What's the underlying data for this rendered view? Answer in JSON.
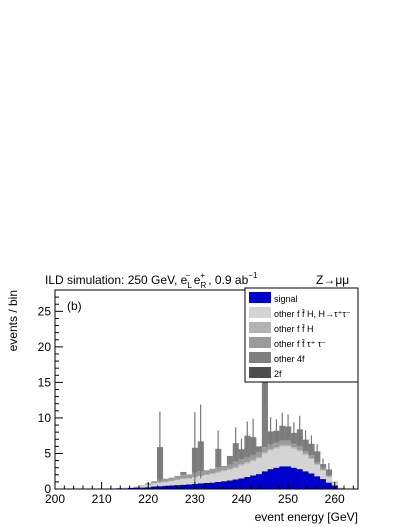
{
  "chart_data": {
    "type": "bar",
    "stacked": true,
    "title_main": "ILD simulation: 250 GeV, e",
    "title_sub1": "L",
    "title_sup1": "−",
    "title_e2": " e",
    "title_sub2": "R",
    "title_sup2": "+",
    "title_lumi": " , 0.9 ab",
    "title_sup3": "−1",
    "channel": "Z→μμ",
    "panel_label": "(b)",
    "xlabel": "event energy [GeV]",
    "ylabel": "events / bin",
    "xlim": [
      200,
      265
    ],
    "ylim": [
      0,
      28
    ],
    "xticks": [
      200,
      210,
      220,
      230,
      240,
      250,
      260
    ],
    "yticks": [
      0,
      5,
      10,
      15,
      20,
      25
    ],
    "bin_width": 1.25,
    "x": [
      212.5,
      213.75,
      215,
      216.25,
      217.5,
      218.75,
      220,
      221.25,
      222.5,
      223.75,
      225,
      226.25,
      227.5,
      228.75,
      230,
      231.25,
      232.5,
      233.75,
      235,
      236.25,
      237.5,
      238.75,
      240,
      241.25,
      242.5,
      243.75,
      245,
      246.25,
      247.5,
      248.75,
      250,
      251.25,
      252.5,
      253.75,
      255,
      256.25,
      257.5,
      258.75,
      260,
      261.25
    ],
    "series": [
      {
        "name": "signal",
        "color": "#0000cc",
        "values": [
          0.05,
          0.1,
          0.1,
          0.15,
          0.2,
          0.2,
          0.25,
          0.35,
          0.4,
          0.45,
          0.5,
          0.55,
          0.6,
          0.65,
          0.7,
          0.8,
          0.85,
          0.9,
          1.0,
          1.1,
          1.2,
          1.35,
          1.5,
          1.7,
          1.9,
          2.1,
          2.5,
          2.8,
          3.0,
          3.2,
          3.2,
          3.0,
          2.8,
          2.5,
          2.2,
          1.8,
          1.4,
          0.9,
          0.5,
          0.1
        ]
      },
      {
        "name": "other f f̄ H, H→τ⁺τ⁻",
        "color": "#d4d4d4",
        "values": [
          0,
          0,
          0.1,
          0.1,
          0.2,
          0.2,
          0.3,
          0.4,
          0.5,
          0.5,
          0.6,
          0.7,
          0.8,
          0.8,
          0.9,
          1.0,
          1.1,
          1.2,
          1.3,
          1.4,
          1.5,
          1.6,
          1.8,
          1.9,
          2.0,
          2.2,
          2.5,
          2.6,
          2.7,
          2.8,
          2.8,
          2.7,
          2.5,
          2.3,
          2.0,
          1.6,
          1.2,
          0.8,
          0.4,
          0.1
        ]
      },
      {
        "name": "other f f̄ H",
        "color": "#b3b3b3",
        "values": [
          0,
          0,
          0,
          0,
          0,
          0,
          0.05,
          0.05,
          0.1,
          0.1,
          0.1,
          0.1,
          0.1,
          0.1,
          0.1,
          0.1,
          0.1,
          0.15,
          0.15,
          0.15,
          0.15,
          0.2,
          0.2,
          0.2,
          0.2,
          0.2,
          0.2,
          0.2,
          0.2,
          0.2,
          0.2,
          0.2,
          0.2,
          0.15,
          0.15,
          0.1,
          0.1,
          0.05,
          0.05,
          0
        ]
      },
      {
        "name": "other f f̄ τ⁺ τ⁻",
        "color": "#9b9b9b",
        "values": [
          0,
          0,
          0,
          0,
          0,
          0.1,
          0.2,
          0.3,
          0.3,
          0.4,
          0.4,
          0.5,
          0.5,
          0.5,
          0.6,
          0.6,
          0.6,
          0.6,
          0.6,
          0.6,
          0.6,
          0.7,
          0.7,
          0.7,
          0.7,
          0.7,
          0.7,
          0.7,
          0.6,
          0.6,
          0.6,
          0.5,
          0.5,
          0.4,
          0.4,
          0.3,
          0.3,
          0.2,
          0.1,
          0
        ]
      },
      {
        "name": "other 4f",
        "color": "#7f7f7f",
        "values": [
          0,
          0,
          0,
          0,
          0,
          0,
          0,
          0,
          4.6,
          0,
          0,
          0,
          0.4,
          0,
          3.5,
          4.2,
          0,
          0,
          2.6,
          0,
          1.2,
          2.6,
          1.4,
          3.0,
          2.5,
          0.8,
          9.6,
          1.8,
          1.7,
          2.1,
          2.0,
          1.5,
          2.4,
          1.6,
          1.6,
          1.5,
          0.5,
          0.8,
          0,
          0
        ]
      },
      {
        "name": "2f",
        "color": "#4d4d4d",
        "values": [
          0,
          0,
          0,
          0,
          0,
          0,
          0,
          0,
          0,
          0,
          0,
          0,
          0,
          0,
          0,
          0,
          0,
          0,
          0,
          0,
          0,
          0,
          0,
          0,
          0,
          0,
          0,
          0,
          0,
          0,
          0,
          0,
          0,
          0,
          0,
          0,
          0,
          0,
          0,
          0
        ]
      }
    ],
    "errors": [
      0,
      0,
      0,
      0,
      0,
      0,
      0,
      0,
      5.0,
      0,
      0,
      0,
      0,
      0,
      5.0,
      5.2,
      0,
      0,
      2.6,
      0,
      0,
      2.2,
      1.5,
      2.0,
      2.6,
      0,
      3.8,
      2.0,
      1.6,
      1.8,
      1.7,
      1.5,
      1.9,
      1.3,
      1.2,
      1.0,
      0.8,
      0.9,
      0,
      0
    ],
    "legend_position": "top-right"
  }
}
